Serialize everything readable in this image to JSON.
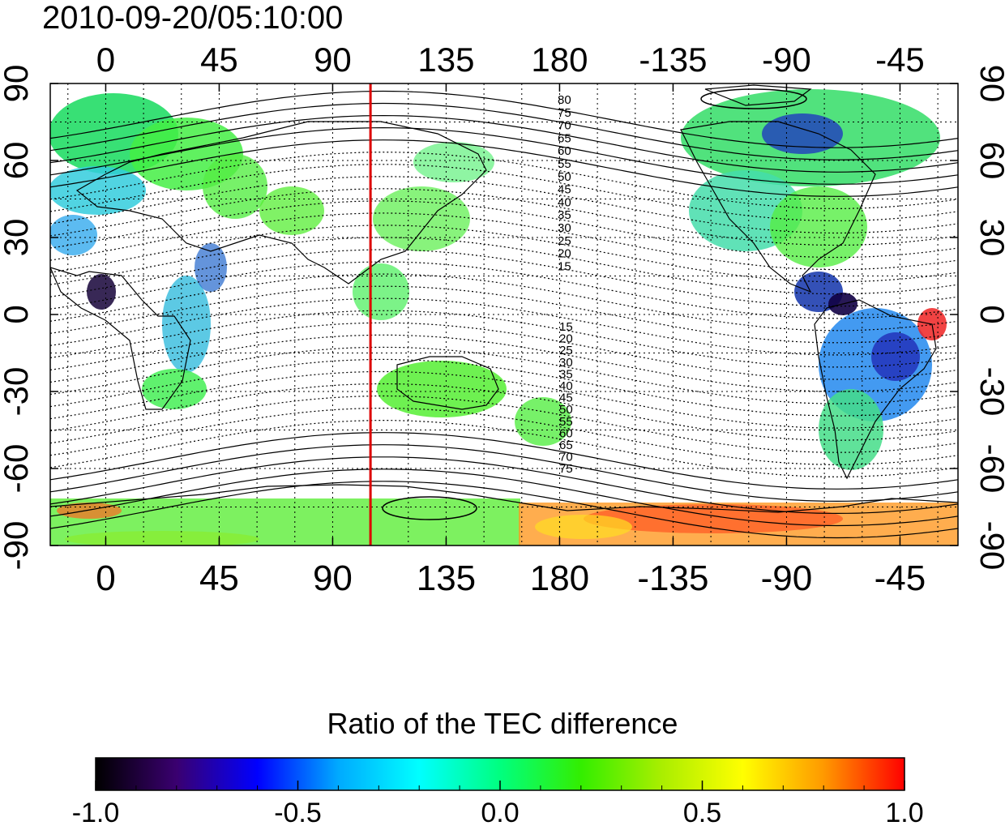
{
  "title": "2010-09-20/05:10:00",
  "map": {
    "projection": "equirectangular",
    "lon_range": [
      -22,
      338
    ],
    "lat_range": [
      -90,
      90
    ],
    "x_ticks": {
      "values": [
        0,
        45,
        90,
        135,
        180,
        225,
        270,
        315
      ],
      "labels": [
        "0",
        "45",
        "90",
        "135",
        "180",
        "-135",
        "-90",
        "-45"
      ]
    },
    "y_ticks": {
      "values": [
        90,
        60,
        30,
        0,
        -30,
        -60,
        -90
      ],
      "labels": [
        "90",
        "60",
        "30",
        "0",
        "-30",
        "-60",
        "-90"
      ]
    },
    "grid": true,
    "reference_line": {
      "lon": 105,
      "color": "#dd0000"
    },
    "contour_labels_north": [
      "80",
      "75",
      "70",
      "65",
      "60",
      "55",
      "50",
      "45",
      "40",
      "35",
      "30",
      "25",
      "20",
      "15"
    ],
    "contour_labels_south": [
      "15",
      "20",
      "25",
      "30",
      "35",
      "40",
      "45",
      "50",
      "55",
      "60",
      "65",
      "70",
      "75"
    ]
  },
  "colorbar": {
    "title": "Ratio of the TEC difference",
    "range": [
      -1.0,
      1.0
    ],
    "ticks": [
      "-1.0",
      "-0.5",
      "0.0",
      "0.5",
      "1.0"
    ],
    "colors": [
      "#000000",
      "#3a0070",
      "#0000ff",
      "#00aaff",
      "#00ffff",
      "#00ff7f",
      "#33ee00",
      "#aaee00",
      "#ffff00",
      "#ff9900",
      "#ff0000"
    ]
  }
}
